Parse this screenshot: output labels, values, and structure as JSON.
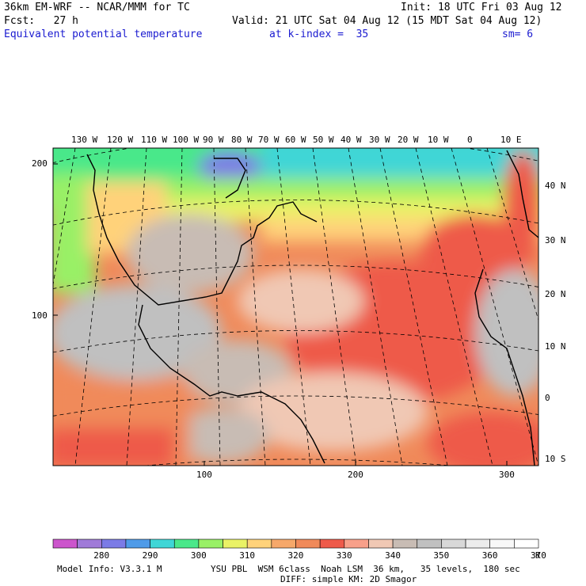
{
  "header": {
    "line1_left": "36km EM-WRF -- NCAR/MMM for TC",
    "line1_right": "Init: 18 UTC Fri 03 Aug 12",
    "line2_left": "Fcst:   27 h",
    "line2_right": "Valid: 21 UTC Sat 04 Aug 12 (15 MDT Sat 04 Aug 12)",
    "field_name": "Equivalent potential temperature",
    "level": "at k-index =  35",
    "smoothing": "sm= 6"
  },
  "map": {
    "top_longitude_labels": [
      "130 W",
      "120 W",
      "110 W",
      "100 W",
      "90 W",
      "80 W",
      "70 W",
      "60 W",
      "50 W",
      "40 W",
      "30 W",
      "20 W",
      "10 W",
      "0",
      "10 E"
    ],
    "right_latitude_labels": [
      "40 N",
      "30 N",
      "20 N",
      "10 N",
      "0",
      "10 S"
    ],
    "left_grid_labels": [
      "200",
      "100"
    ],
    "bottom_grid_labels": [
      "100",
      "200",
      "300"
    ]
  },
  "colorbar": {
    "units": "K",
    "tick_labels": [
      "280",
      "290",
      "300",
      "310",
      "320",
      "330",
      "340",
      "350",
      "360",
      "370"
    ],
    "colors": [
      "#cc55cc",
      "#a07ad8",
      "#7b7be6",
      "#4f9be8",
      "#3fd6d6",
      "#4ae88a",
      "#99f066",
      "#eaf266",
      "#ffd27a",
      "#f6a86a",
      "#f08a5a",
      "#ee5a4a",
      "#f8a08a",
      "#f0c8b4",
      "#c8bcb4",
      "#c0c0c0",
      "#d8d8d8",
      "#ececec",
      "#f8f8f8",
      "#ffffff"
    ]
  },
  "footer": {
    "model_info": "Model Info: V3.3.1 M",
    "physics_line1": "YSU PBL  WSM 6class  Noah LSM  36 km,   35 levels,  180 sec",
    "physics_line2": "DIFF: simple KM: 2D Smagor"
  }
}
